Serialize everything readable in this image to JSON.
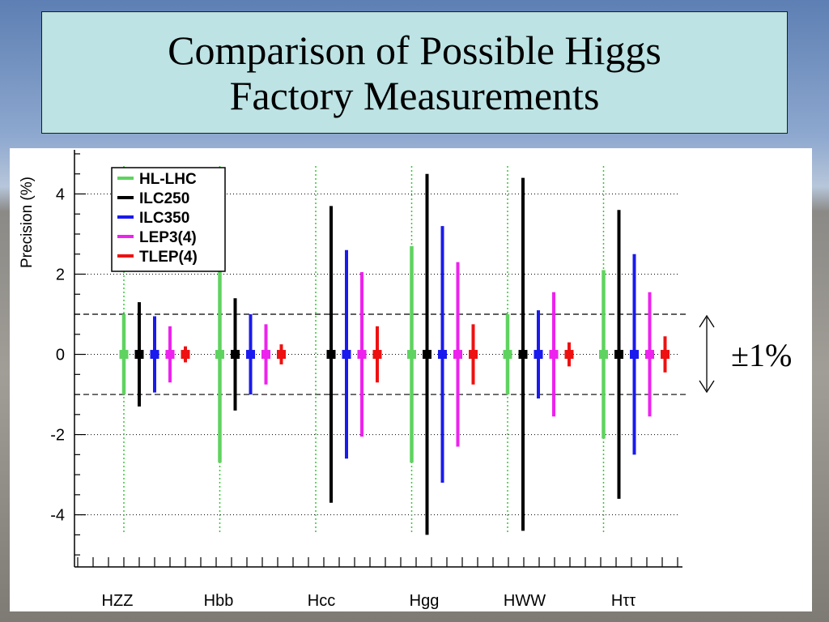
{
  "title": "Comparison of Possible Higgs Factory Measurements",
  "annotation": "±1%",
  "colors": {
    "HL-LHC": "#5fd35f",
    "ILC250": "#000000",
    "ILC350": "#1a1aee",
    "LEP3(4)": "#ee22ee",
    "TLEP(4)": "#ee1111"
  },
  "chart_data": {
    "type": "errorbar",
    "ylabel": "Precision (%)",
    "xlabel": "",
    "ylim": [
      -5.3,
      5.1
    ],
    "yticks": [
      -4,
      -2,
      0,
      2,
      4
    ],
    "grid": "dotted horizontal at major ticks",
    "reference_lines": [
      -1,
      1
    ],
    "legend_position": "top-left",
    "categories": [
      "HZZ",
      "Hbb",
      "Hcc",
      "Hgg",
      "HWW",
      "Hττ"
    ],
    "series": [
      {
        "name": "HL-LHC",
        "values": [
          1.0,
          2.7,
          null,
          2.7,
          1.0,
          2.1
        ],
        "center_marker": [
          true,
          true,
          false,
          true,
          true,
          true
        ]
      },
      {
        "name": "ILC250",
        "values": [
          1.3,
          1.4,
          3.7,
          4.5,
          4.4,
          3.6
        ],
        "center_marker": [
          true,
          true,
          true,
          true,
          true,
          true
        ]
      },
      {
        "name": "ILC350",
        "values": [
          0.95,
          1.0,
          2.6,
          3.2,
          1.1,
          2.5
        ],
        "center_marker": [
          true,
          true,
          true,
          true,
          true,
          true
        ]
      },
      {
        "name": "LEP3(4)",
        "values": [
          0.7,
          0.75,
          2.05,
          2.3,
          1.55,
          1.55
        ],
        "center_marker": [
          true,
          true,
          true,
          true,
          true,
          true
        ]
      },
      {
        "name": "TLEP(4)",
        "values": [
          0.2,
          0.25,
          0.7,
          0.75,
          0.3,
          0.45
        ],
        "center_marker": [
          true,
          true,
          true,
          true,
          true,
          true
        ]
      }
    ]
  }
}
